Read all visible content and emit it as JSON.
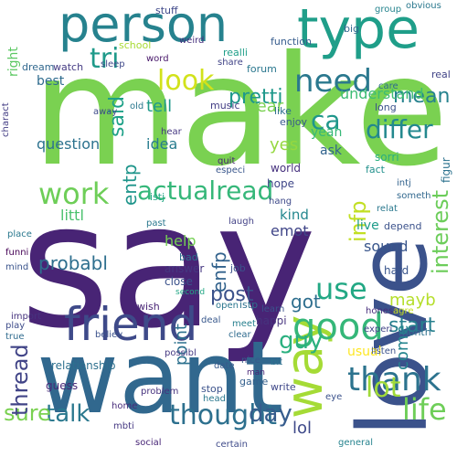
{
  "words": [
    {
      "text": "make",
      "color": "#7ad151"
    },
    {
      "text": "say",
      "color": "#482475"
    },
    {
      "text": "want",
      "color": "#31688e"
    },
    {
      "text": "love",
      "color": "#3b528b"
    },
    {
      "text": "person",
      "color": "#26828e"
    },
    {
      "text": "type",
      "color": "#1f9e89"
    },
    {
      "text": "friend",
      "color": "#3e4a89"
    },
    {
      "text": "way",
      "color": "#a5db36"
    },
    {
      "text": "good",
      "color": "#35b779"
    },
    {
      "text": "look",
      "color": "#d2e21b"
    },
    {
      "text": "need",
      "color": "#2a788e"
    },
    {
      "text": "thank",
      "color": "#2c738e"
    },
    {
      "text": "actualread",
      "color": "#35b779"
    },
    {
      "text": "work",
      "color": "#6ece58"
    },
    {
      "text": "tri",
      "color": "#1f9a8a"
    },
    {
      "text": "use",
      "color": "#22a884"
    },
    {
      "text": "thought",
      "color": "#2d708e"
    },
    {
      "text": "life",
      "color": "#6ece58"
    },
    {
      "text": "lot",
      "color": "#a0da39"
    },
    {
      "text": "differ",
      "color": "#23888e"
    },
    {
      "text": "interest",
      "color": "#6ccd5a"
    },
    {
      "text": "pretti",
      "color": "#1f988b"
    },
    {
      "text": "mean",
      "color": "#26828e"
    },
    {
      "text": "day",
      "color": "#365c8d"
    },
    {
      "text": "talk",
      "color": "#2a788e"
    },
    {
      "text": "sure",
      "color": "#7ad151"
    },
    {
      "text": "thread",
      "color": "#414487"
    },
    {
      "text": "start",
      "color": "#27808e"
    },
    {
      "text": "guy",
      "color": "#2ab07f"
    },
    {
      "text": "said",
      "color": "#1fa188"
    },
    {
      "text": "ca",
      "color": "#1f968b"
    },
    {
      "text": "yes",
      "color": "#95d840"
    },
    {
      "text": "infp",
      "color": "#c2df23"
    },
    {
      "text": "post",
      "color": "#3b528b"
    },
    {
      "text": "got",
      "color": "#2e6e8e"
    },
    {
      "text": "mayb",
      "color": "#b5de2b"
    },
    {
      "text": "probabl",
      "color": "#2e6f8e"
    },
    {
      "text": "entp",
      "color": "#1f958b"
    },
    {
      "text": "come",
      "color": "#25858e"
    },
    {
      "text": "year",
      "color": "#7ad151"
    },
    {
      "text": "question",
      "color": "#2c728e"
    },
    {
      "text": "understand",
      "color": "#3dbc74"
    },
    {
      "text": "enfp",
      "color": "#33638d"
    },
    {
      "text": "tell",
      "color": "#1f9a8a"
    },
    {
      "text": "yeah",
      "color": "#37b878"
    },
    {
      "text": "emot",
      "color": "#404688"
    },
    {
      "text": "kind",
      "color": "#24878e"
    },
    {
      "text": "littl",
      "color": "#4ac16d"
    },
    {
      "text": "idea",
      "color": "#287c8e"
    },
    {
      "text": "help",
      "color": "#75d054"
    },
    {
      "text": "sound",
      "color": "#39568c"
    },
    {
      "text": "live",
      "color": "#1e9c89"
    },
    {
      "text": "best",
      "color": "#2f6c8e"
    },
    {
      "text": "usual",
      "color": "#fde725"
    },
    {
      "text": "ask",
      "color": "#32648e"
    },
    {
      "text": "happi",
      "color": "#46337e"
    },
    {
      "text": "hope",
      "color": "#3f4788"
    },
    {
      "text": "fact",
      "color": "#21918c"
    },
    {
      "text": "realli",
      "color": "#1f9e89"
    },
    {
      "text": "relationship",
      "color": "#2d708e"
    },
    {
      "text": "music",
      "color": "#433e85"
    },
    {
      "text": "point",
      "color": "#2d718e"
    },
    {
      "text": "game",
      "color": "#34608d"
    },
    {
      "text": "lol",
      "color": "#3e4989"
    },
    {
      "text": "answer",
      "color": "#453781"
    },
    {
      "text": "close",
      "color": "#3b528b"
    },
    {
      "text": "guess",
      "color": "#482878"
    },
    {
      "text": "stuff",
      "color": "#3f4889"
    },
    {
      "text": "forum",
      "color": "#2a778e"
    },
    {
      "text": "world",
      "color": "#46317e"
    },
    {
      "text": "like",
      "color": "#2e6e8e"
    },
    {
      "text": "hard",
      "color": "#39558c"
    },
    {
      "text": "right",
      "color": "#5cc863"
    },
    {
      "text": "istp",
      "color": "#2d718e"
    },
    {
      "text": "istj",
      "color": "#22a785"
    },
    {
      "text": "function",
      "color": "#365c8d"
    },
    {
      "text": "dream",
      "color": "#31688e"
    },
    {
      "text": "watch",
      "color": "#443a83"
    },
    {
      "text": "school",
      "color": "#a8db34"
    },
    {
      "text": "word",
      "color": "#48186a"
    },
    {
      "text": "share",
      "color": "#414487"
    },
    {
      "text": "big",
      "color": "#31688e"
    },
    {
      "text": "group",
      "color": "#25848e"
    },
    {
      "text": "obvious",
      "color": "#2a788e"
    },
    {
      "text": "experi",
      "color": "#414487"
    },
    {
      "text": "listen",
      "color": "#3b528b"
    },
    {
      "text": "month",
      "color": "#2c728e"
    },
    {
      "text": "honest",
      "color": "#472d7b"
    },
    {
      "text": "learn",
      "color": "#3b528b"
    },
    {
      "text": "wish",
      "color": "#482475"
    },
    {
      "text": "bad",
      "color": "#2d708e"
    },
    {
      "text": "job",
      "color": "#3b528b"
    },
    {
      "text": "hang",
      "color": "#3e4989"
    },
    {
      "text": "laugh",
      "color": "#424186"
    },
    {
      "text": "quit",
      "color": "#482173"
    },
    {
      "text": "especi",
      "color": "#39568c"
    },
    {
      "text": "stop",
      "color": "#3b528b"
    },
    {
      "text": "head",
      "color": "#2a788e"
    },
    {
      "text": "write",
      "color": "#3f4889"
    },
    {
      "text": "problem",
      "color": "#46327e"
    },
    {
      "text": "social",
      "color": "#482677"
    },
    {
      "text": "certain",
      "color": "#3e4a89"
    },
    {
      "text": "general",
      "color": "#25838e"
    },
    {
      "text": "mbti",
      "color": "#453882"
    },
    {
      "text": "date",
      "color": "#375a8c"
    },
    {
      "text": "nice",
      "color": "#38598c"
    },
    {
      "text": "bit",
      "color": "#2c728e"
    },
    {
      "text": "play",
      "color": "#3e4c8a"
    },
    {
      "text": "true",
      "color": "#2f6b8e"
    },
    {
      "text": "place",
      "color": "#2a788e"
    },
    {
      "text": "funni",
      "color": "#440154"
    },
    {
      "text": "mind",
      "color": "#3a548c"
    },
    {
      "text": "deal",
      "color": "#38588c"
    },
    {
      "text": "open",
      "color": "#2a768e"
    },
    {
      "text": "second",
      "color": "#22a785"
    },
    {
      "text": "clear",
      "color": "#2f6b8e"
    },
    {
      "text": "meet",
      "color": "#277f8e"
    },
    {
      "text": "depend",
      "color": "#3b528b"
    },
    {
      "text": "relat",
      "color": "#2a788e"
    },
    {
      "text": "real",
      "color": "#414487"
    },
    {
      "text": "long",
      "color": "#3b528b"
    },
    {
      "text": "sorri",
      "color": "#29af7f"
    },
    {
      "text": "enjoy",
      "color": "#38598c"
    },
    {
      "text": "intj",
      "color": "#33638d"
    },
    {
      "text": "figur",
      "color": "#2c728e"
    },
    {
      "text": "someth",
      "color": "#31688e"
    },
    {
      "text": "home",
      "color": "#472c7a"
    },
    {
      "text": "believ",
      "color": "#3b528b"
    },
    {
      "text": "possibl",
      "color": "#453882"
    },
    {
      "text": "import",
      "color": "#46337e"
    },
    {
      "text": "away",
      "color": "#3e4a89"
    },
    {
      "text": "hear",
      "color": "#453781"
    },
    {
      "text": "past",
      "color": "#2a788e"
    },
    {
      "text": "man",
      "color": "#482475"
    },
    {
      "text": "agre",
      "color": "#c8e020"
    },
    {
      "text": "eye",
      "color": "#3b528b"
    },
    {
      "text": "care",
      "color": "#2f6c8e"
    },
    {
      "text": "charact",
      "color": "#433d84"
    },
    {
      "text": "weird",
      "color": "#46307e"
    },
    {
      "text": "sleep",
      "color": "#3f4889"
    },
    {
      "text": "old",
      "color": "#2a788e"
    }
  ]
}
